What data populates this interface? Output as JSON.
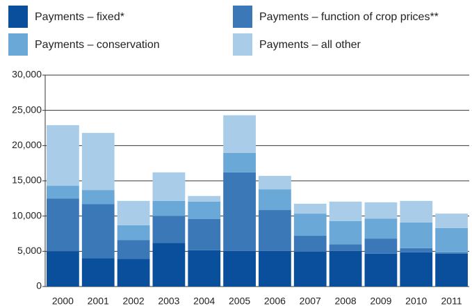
{
  "chart_data": {
    "type": "stacked_bar",
    "categories": [
      "2000",
      "2001",
      "2002",
      "2003",
      "2004",
      "2005",
      "2006",
      "2007",
      "2008",
      "2009",
      "2010",
      "2011"
    ],
    "series": [
      {
        "name": "Payments – fixed*",
        "color": "#0a4f9c",
        "values": [
          5000,
          4000,
          3900,
          6200,
          5150,
          5050,
          5050,
          4950,
          5050,
          4650,
          4850,
          4650
        ]
      },
      {
        "name": "Payments – function of crop prices**",
        "color": "#3b78b8",
        "values": [
          7500,
          7700,
          2700,
          3800,
          4450,
          11150,
          5800,
          2250,
          950,
          2150,
          600,
          200
        ]
      },
      {
        "name": "Payments – conservation",
        "color": "#6aa8d8",
        "values": [
          1800,
          2000,
          2100,
          2150,
          2450,
          2750,
          2950,
          3150,
          3300,
          2850,
          3650,
          3450
        ]
      },
      {
        "name": "Payments – all other",
        "color": "#a9cde8",
        "values": [
          8600,
          8100,
          3450,
          4050,
          800,
          5350,
          1900,
          1400,
          2750,
          2300,
          3050,
          2050
        ]
      }
    ],
    "ylim": [
      0,
      30000
    ],
    "yticks": [
      0,
      {
        "value": 5000,
        "label": "5,000"
      },
      {
        "value": 10000,
        "label": "10,000"
      },
      {
        "value": 15000,
        "label": "15,000"
      },
      {
        "value": 20000,
        "label": "20,000"
      },
      {
        "value": 25000,
        "label": "25,000"
      },
      {
        "value": 30000,
        "label": "30,000"
      }
    ],
    "grid": true
  }
}
